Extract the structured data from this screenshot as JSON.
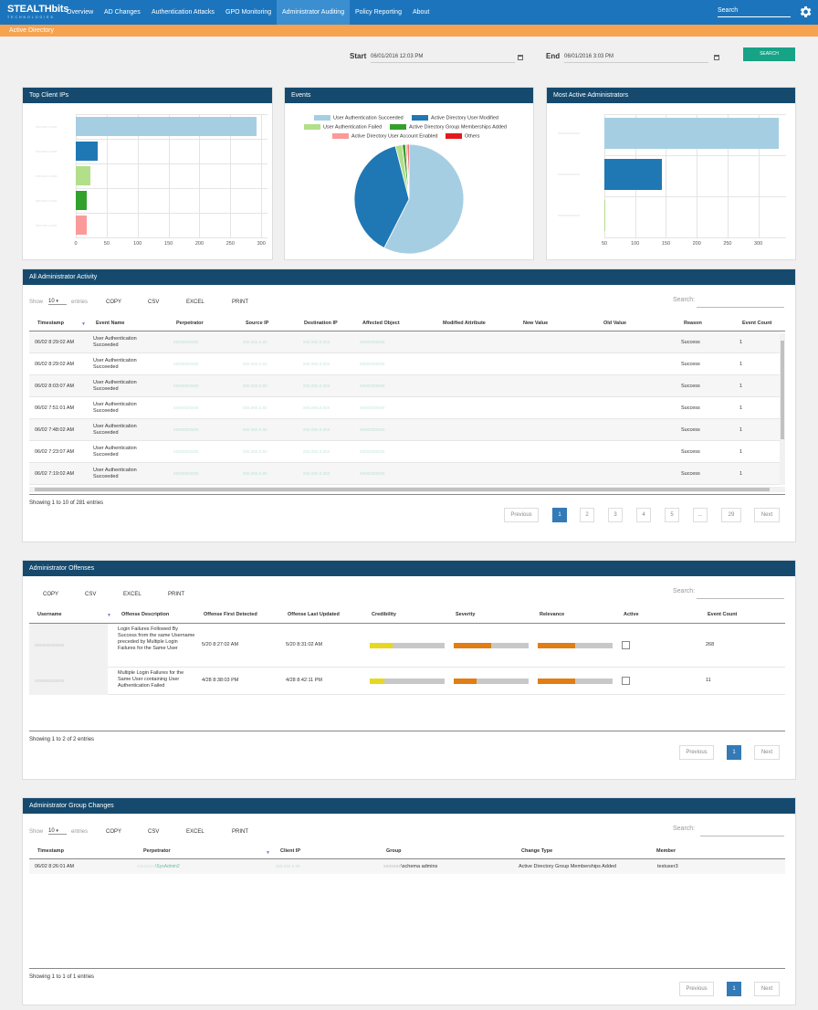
{
  "nav": {
    "logo": "STEALTHbits",
    "logo_sub": "TECHNOLOGIES",
    "items": [
      "Overview",
      "AD Changes",
      "Authentication Attacks",
      "GPO Monitoring",
      "Administrator Auditing",
      "Policy Reporting",
      "About"
    ],
    "active_item": "Administrator Auditing",
    "search_placeholder": "Search",
    "settings_icon": "gear-icon"
  },
  "subnav": {
    "label": "Active Directory"
  },
  "date_range": {
    "start_label": "Start",
    "start_value": "06/01/2016 12:03 PM",
    "end_label": "End",
    "end_value": "06/01/2016 3:03 PM",
    "calendar_icon": "calendar-icon",
    "search_button": "SEARCH"
  },
  "colors": {
    "nav": "#1c75bc",
    "panel_header": "#154a6e",
    "accent_bar": "#f7a24f",
    "search_button": "#17a386"
  },
  "top_ips": {
    "title": "Top Client IPs",
    "chart_data": {
      "type": "bar",
      "orientation": "horizontal",
      "values": [
        293,
        36,
        23,
        18,
        17
      ],
      "colors": [
        "#a6cee3",
        "#1f78b4",
        "#b2df8a",
        "#33a02c",
        "#fb9a99"
      ],
      "xlim": [
        0,
        310
      ],
      "xticks": [
        0,
        50,
        100,
        150,
        200,
        250,
        300
      ]
    }
  },
  "events": {
    "title": "Events",
    "legend": [
      {
        "label": "User Authentication Succeeded",
        "color": "#a6cee3"
      },
      {
        "label": "Active Directory User Modified",
        "color": "#1f78b4"
      },
      {
        "label": "User Authentication Failed",
        "color": "#b2df8a"
      },
      {
        "label": "Active Directory Group Memberships Added",
        "color": "#33a02c"
      },
      {
        "label": "Active Directory User Account Enabled",
        "color": "#fb9a99"
      },
      {
        "label": "Others",
        "color": "#e31a1c"
      }
    ],
    "chart_data": {
      "type": "pie",
      "labels": [
        "User Authentication Succeeded",
        "Active Directory User Modified",
        "User Authentication Failed",
        "Active Directory Group Memberships Added",
        "Active Directory User Account Enabled",
        "Others"
      ],
      "values": [
        57.5,
        38.5,
        2,
        1,
        0.5,
        0.5
      ],
      "colors": [
        "#a6cee3",
        "#1f78b4",
        "#b2df8a",
        "#33a02c",
        "#fb9a99",
        "#e31a1c"
      ]
    }
  },
  "admins": {
    "title": "Most Active Administrators",
    "chart_data": {
      "type": "bar",
      "orientation": "horizontal",
      "values": [
        333,
        143,
        52
      ],
      "colors": [
        "#a6cee3",
        "#1f78b4",
        "#b2df8a"
      ],
      "xlim": [
        50,
        345
      ],
      "xticks": [
        50,
        100,
        150,
        200,
        250,
        300
      ]
    }
  },
  "activity": {
    "title": "All Administrator Activity",
    "show": "Show",
    "entries_count": "10",
    "entries": "entries",
    "export_buttons": [
      "COPY",
      "CSV",
      "EXCEL",
      "PRINT"
    ],
    "search_label": "Search:",
    "columns": [
      "Timestamp",
      "Event Name",
      "Perpetrator",
      "Source IP",
      "Destination IP",
      "Affected Object",
      "Modified Attribute",
      "New Value",
      "Old Value",
      "Reason",
      "Event Count"
    ],
    "rows": [
      {
        "time": "06/02 8:29:02 AM",
        "event": "User Authentication Succeeded",
        "reason": "Success",
        "count": "1"
      },
      {
        "time": "06/02 8:29:02 AM",
        "event": "User Authentication Succeeded",
        "reason": "Success",
        "count": "1"
      },
      {
        "time": "06/02 8:03:07 AM",
        "event": "User Authentication Succeeded",
        "reason": "Success",
        "count": "1"
      },
      {
        "time": "06/02 7:51:01 AM",
        "event": "User Authentication Succeeded",
        "reason": "Success",
        "count": "1"
      },
      {
        "time": "06/02 7:48:02 AM",
        "event": "User Authentication Succeeded",
        "reason": "Success",
        "count": "1"
      },
      {
        "time": "06/02 7:23:07 AM",
        "event": "User Authentication Succeeded",
        "reason": "Success",
        "count": "1"
      },
      {
        "time": "06/02 7:19:02 AM",
        "event": "User Authentication Succeeded",
        "reason": "Success",
        "count": "1"
      }
    ],
    "info": "Showing 1 to 10 of 281 entries",
    "pager": {
      "previous": "Previous",
      "pages": [
        "1",
        "2",
        "3",
        "4",
        "5",
        "...",
        "29"
      ],
      "next": "Next",
      "current": "1"
    }
  },
  "offenses": {
    "title": "Administrator Offenses",
    "export_buttons": [
      "COPY",
      "CSV",
      "EXCEL",
      "PRINT"
    ],
    "search_label": "Search:",
    "columns": [
      "Username",
      "Offense Description",
      "Offense First Detected",
      "Offense Last Updated",
      "Credibility",
      "Severity",
      "Relevance",
      "Active",
      "Event Count"
    ],
    "rows": [
      {
        "desc": "Login Failures Followed By Success from the same Username preceded by Multiple Login Failures for the Same User",
        "first": "5/20 8:27:02 AM",
        "last": "5/20 8:31:02 AM",
        "credibility": 0.3,
        "severity": 0.5,
        "relevance": 0.5,
        "count": "268"
      },
      {
        "desc": "Multiple Login Failures for the Same User containing User Authentication Failed",
        "first": "4/28 8:38:03 PM",
        "last": "4/28 8:42:11 PM",
        "credibility": 0.2,
        "severity": 0.3,
        "relevance": 0.5,
        "count": "11"
      }
    ],
    "info": "Showing 1 to 2 of 2 entries",
    "pager": {
      "previous": "Previous",
      "current": "1",
      "next": "Next"
    }
  },
  "group_changes": {
    "title": "Administrator Group Changes",
    "show": "Show",
    "entries_count": "10",
    "entries": "entries",
    "export_buttons": [
      "COPY",
      "CSV",
      "EXCEL",
      "PRINT"
    ],
    "search_label": "Search:",
    "columns": [
      "Timestamp",
      "Perpetrator",
      "Client IP",
      "Group",
      "Change Type",
      "Member"
    ],
    "rows": [
      {
        "time": "06/02 8:26:01 AM",
        "perpetrator": "\\SysAdmin2",
        "group": "\\schema admins",
        "change": "Active Directory Group Memberships Added",
        "member": "testuser3"
      }
    ],
    "info": "Showing 1 to 1 of 1 entries",
    "pager": {
      "previous": "Previous",
      "current": "1",
      "next": "Next"
    }
  }
}
